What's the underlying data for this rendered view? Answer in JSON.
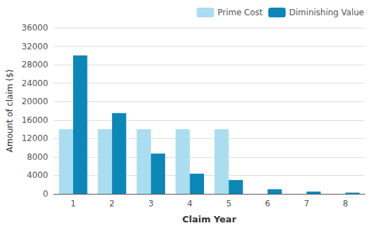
{
  "chart_data": {
    "type": "bar",
    "categories": [
      "1",
      "2",
      "3",
      "4",
      "5",
      "6",
      "7",
      "8"
    ],
    "series": [
      {
        "name": "Prime Cost",
        "color": "#aaddf0",
        "values": [
          14000,
          14000,
          14000,
          14000,
          14000,
          0,
          0,
          0
        ]
      },
      {
        "name": "Diminishing Value",
        "color": "#0d87b8",
        "values": [
          30000,
          17500,
          8750,
          4375,
          3000,
          1000,
          500,
          250
        ]
      }
    ],
    "xlabel": "Claim Year",
    "ylabel": "Amount of claim ($)",
    "ylim": [
      0,
      36000
    ],
    "yticks": [
      0,
      4000,
      8000,
      12000,
      16000,
      20000,
      24000,
      28000,
      32000,
      36000
    ],
    "grid": true,
    "legend": "upper right"
  }
}
